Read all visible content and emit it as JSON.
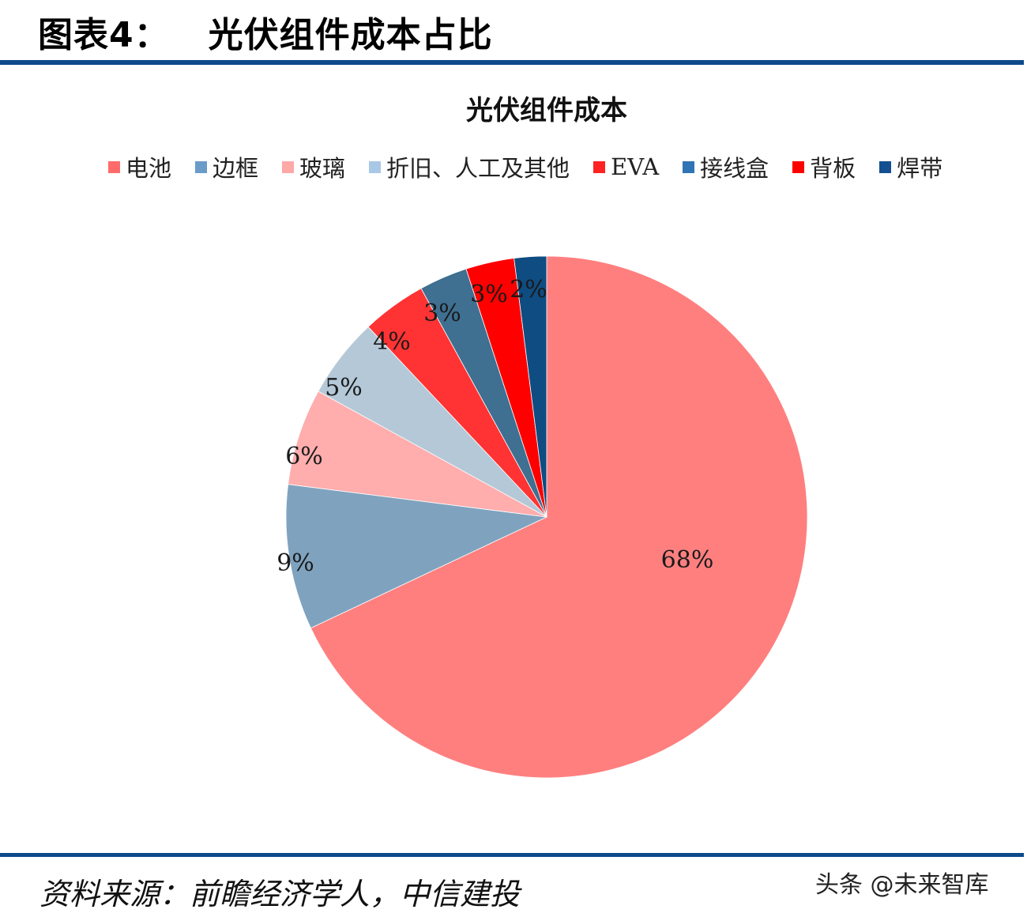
{
  "figure": {
    "title": "图表4：   光伏组件成本占比"
  },
  "chart_data": {
    "type": "pie",
    "title": "光伏组件成本",
    "categories": [
      "电池",
      "边框",
      "玻璃",
      "折旧、人工及其他",
      "EVA",
      "接线盒",
      "背板",
      "焊带"
    ],
    "values": [
      68,
      9,
      6,
      5,
      4,
      3,
      3,
      2
    ],
    "unit": "%",
    "labels": [
      "68%",
      "9%",
      "6%",
      "5%",
      "4%",
      "3%",
      "3%",
      "2%"
    ],
    "colors": [
      "#ff7f7f",
      "#7fa3bf",
      "#ffadad",
      "#b4c8d8",
      "#ff3333",
      "#3f6f91",
      "#ff0000",
      "#0f4c81"
    ],
    "start_angle": "12 o'clock",
    "direction": "clockwise",
    "legend_position": "top",
    "grid": false
  },
  "legend": {
    "items": [
      {
        "label": "电池",
        "color": "#ff6b6b"
      },
      {
        "label": "边框",
        "color": "#6b9bc8"
      },
      {
        "label": "玻璃",
        "color": "#ffa8a8"
      },
      {
        "label": "折旧、人工及其他",
        "color": "#a9c8e6"
      },
      {
        "label": "EVA",
        "color": "#ff2222"
      },
      {
        "label": "接线盒",
        "color": "#2f74b4"
      },
      {
        "label": "背板",
        "color": "#ff0000"
      },
      {
        "label": "焊带",
        "color": "#134f91"
      }
    ]
  },
  "footer": {
    "source": "资料来源：前瞻经济学人，中信建投",
    "watermark": "头条 @未来智库"
  }
}
